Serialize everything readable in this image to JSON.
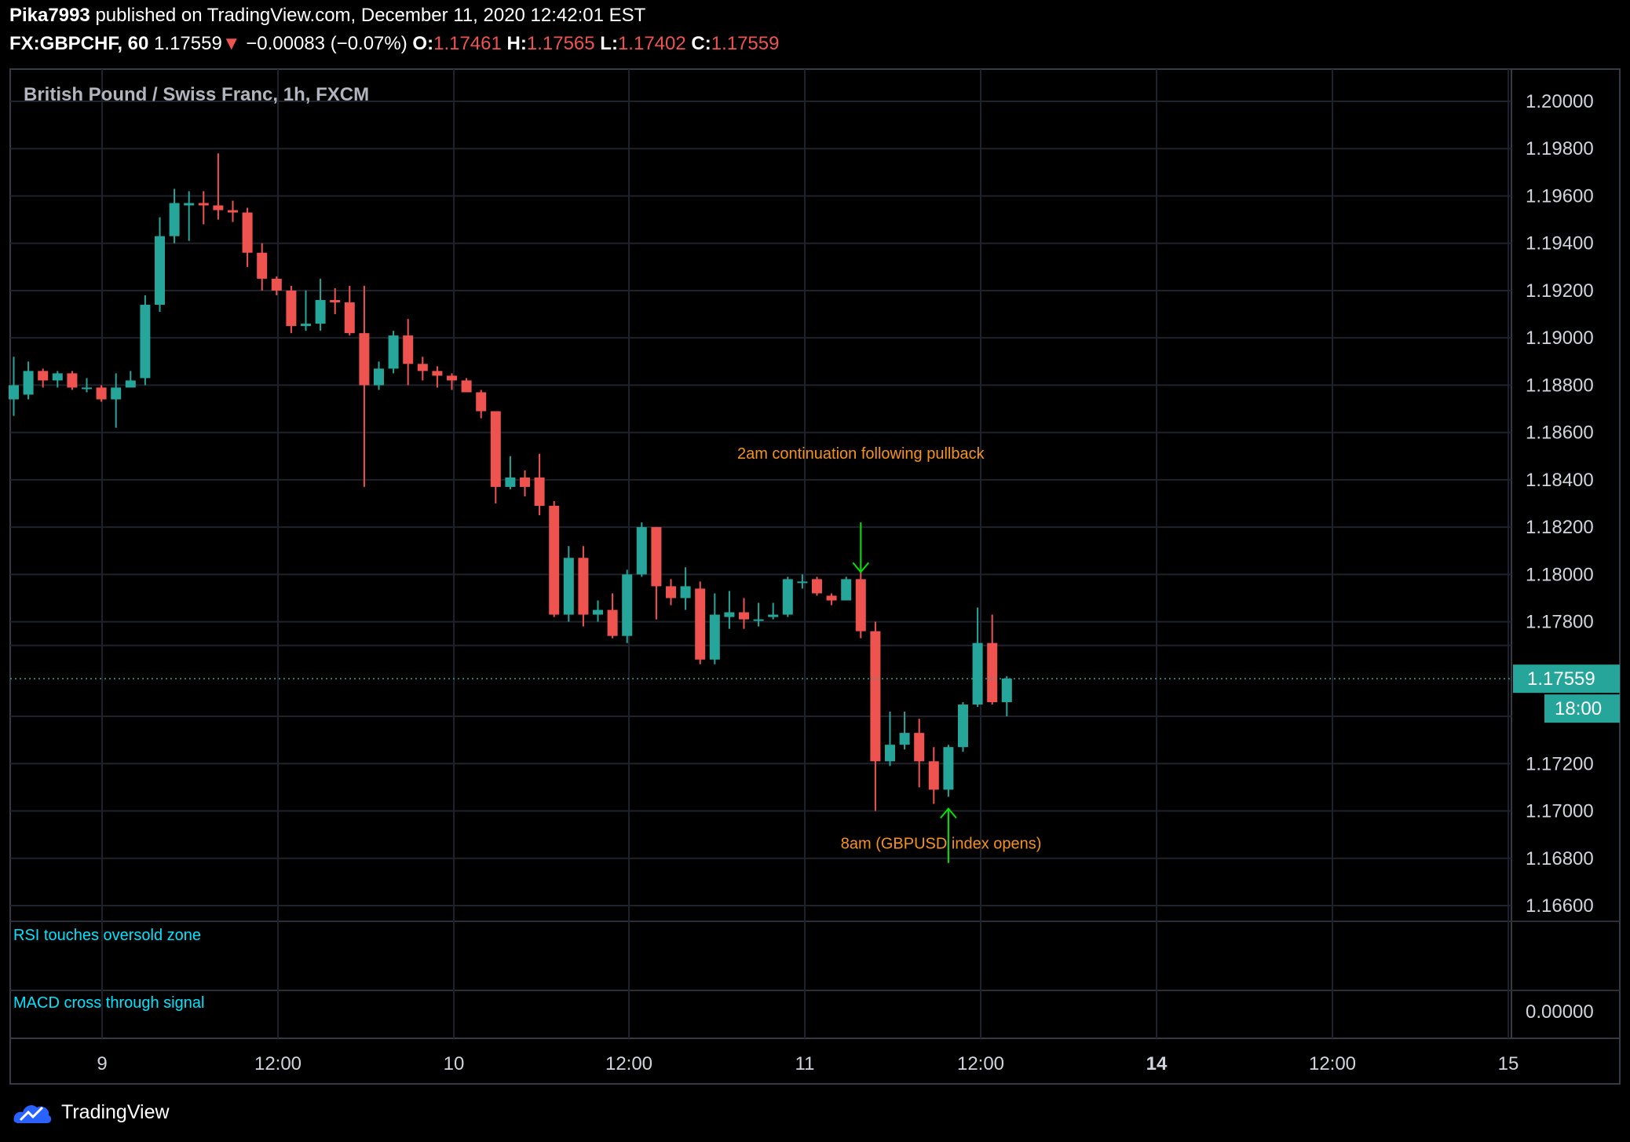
{
  "header": {
    "user": "Pika7993",
    "published": "published on TradingView.com, December 11, 2020 12:42:01 EST",
    "symbol": "FX:GBPCHF, 60",
    "last": "1.17559",
    "change_arrow": "▼",
    "change": "−0.00083 (−0.07%)",
    "o_label": "O:",
    "o": "1.17461",
    "h_label": "H:",
    "h": "1.17565",
    "l_label": "L:",
    "l": "1.17402",
    "c_label": "C:",
    "c": "1.17559"
  },
  "chart_title": "British Pound / Swiss Franc, 1h, FXCM",
  "footer": {
    "brand": "TradingView"
  },
  "colors": {
    "up": "#26a69a",
    "down": "#ef5350",
    "grid": "#1e222d",
    "annotation": "#f7931a",
    "signal": "#00e5ff",
    "arrow": "#00e600"
  },
  "chart_data": {
    "type": "candlestick",
    "title": "British Pound / Swiss Franc, 1h, FXCM",
    "ylim": [
      1.1652,
      1.2013
    ],
    "y_ticks": [
      "1.20000",
      "1.19800",
      "1.19600",
      "1.19400",
      "1.19200",
      "1.19000",
      "1.18800",
      "1.18600",
      "1.18400",
      "1.18200",
      "1.18000",
      "1.17800",
      "1.17200",
      "1.17000",
      "1.16800",
      "1.16600"
    ],
    "x_ticks": [
      "9",
      "12:00",
      "10",
      "12:00",
      "11",
      "12:00",
      "14",
      "12:00",
      "15"
    ],
    "price_label": "1.17559",
    "countdown_label": "18:00",
    "candles": [
      [
        1.1874,
        1.188,
        1.1867,
        1.1892
      ],
      [
        1.1876,
        1.1886,
        1.1874,
        1.189
      ],
      [
        1.1886,
        1.1882,
        1.1879,
        1.1887
      ],
      [
        1.1882,
        1.1885,
        1.1879,
        1.1886
      ],
      [
        1.1885,
        1.1879,
        1.1878,
        1.1886
      ],
      [
        1.1879,
        1.1879,
        1.1877,
        1.1883
      ],
      [
        1.1879,
        1.1874,
        1.1873,
        1.188
      ],
      [
        1.1874,
        1.1879,
        1.1862,
        1.1885
      ],
      [
        1.1879,
        1.1882,
        1.188,
        1.1886
      ],
      [
        1.1883,
        1.1914,
        1.188,
        1.1918
      ],
      [
        1.1914,
        1.1943,
        1.1911,
        1.1951
      ],
      [
        1.1943,
        1.1957,
        1.194,
        1.1963
      ],
      [
        1.1956,
        1.1957,
        1.1941,
        1.1962
      ],
      [
        1.1957,
        1.1956,
        1.1948,
        1.1962
      ],
      [
        1.1956,
        1.1954,
        1.195,
        1.1978
      ],
      [
        1.1954,
        1.1953,
        1.1949,
        1.1958
      ],
      [
        1.1953,
        1.1936,
        1.193,
        1.1955
      ],
      [
        1.1936,
        1.1925,
        1.192,
        1.194
      ],
      [
        1.1925,
        1.192,
        1.1918,
        1.1926
      ],
      [
        1.192,
        1.1905,
        1.1902,
        1.1922
      ],
      [
        1.1905,
        1.1906,
        1.1903,
        1.192
      ],
      [
        1.1906,
        1.1916,
        1.1903,
        1.1925
      ],
      [
        1.1916,
        1.1915,
        1.191,
        1.1921
      ],
      [
        1.1915,
        1.1902,
        1.1901,
        1.1922
      ],
      [
        1.1902,
        1.188,
        1.1837,
        1.1922
      ],
      [
        1.188,
        1.1887,
        1.1878,
        1.189
      ],
      [
        1.1887,
        1.1901,
        1.1885,
        1.1903
      ],
      [
        1.1901,
        1.1889,
        1.188,
        1.1908
      ],
      [
        1.1889,
        1.1886,
        1.1882,
        1.1892
      ],
      [
        1.1886,
        1.1884,
        1.1879,
        1.1888
      ],
      [
        1.1884,
        1.1882,
        1.1878,
        1.1885
      ],
      [
        1.1882,
        1.1877,
        1.1877,
        1.1883
      ],
      [
        1.1877,
        1.1869,
        1.1866,
        1.1878
      ],
      [
        1.1869,
        1.1837,
        1.183,
        1.1869
      ],
      [
        1.1837,
        1.1841,
        1.1836,
        1.185
      ],
      [
        1.1841,
        1.1837,
        1.1833,
        1.1844
      ],
      [
        1.1841,
        1.1829,
        1.1825,
        1.1851
      ],
      [
        1.1829,
        1.1783,
        1.1782,
        1.1831
      ],
      [
        1.1783,
        1.1807,
        1.178,
        1.1812
      ],
      [
        1.1807,
        1.1783,
        1.1778,
        1.1812
      ],
      [
        1.1783,
        1.1785,
        1.178,
        1.1789
      ],
      [
        1.1785,
        1.1774,
        1.1773,
        1.1792
      ],
      [
        1.1774,
        1.18,
        1.1771,
        1.1802
      ],
      [
        1.18,
        1.182,
        1.1799,
        1.1822
      ],
      [
        1.182,
        1.1795,
        1.1781,
        1.182
      ],
      [
        1.1795,
        1.179,
        1.1787,
        1.1798
      ],
      [
        1.179,
        1.1795,
        1.1785,
        1.1803
      ],
      [
        1.1794,
        1.1764,
        1.1762,
        1.1797
      ],
      [
        1.1764,
        1.1783,
        1.1762,
        1.1792
      ],
      [
        1.1782,
        1.1784,
        1.1777,
        1.1793
      ],
      [
        1.1784,
        1.1781,
        1.1777,
        1.179
      ],
      [
        1.1781,
        1.1781,
        1.1778,
        1.1788
      ],
      [
        1.1782,
        1.1783,
        1.1781,
        1.1788
      ],
      [
        1.1783,
        1.1798,
        1.1782,
        1.1799
      ],
      [
        1.1797,
        1.1797,
        1.1794,
        1.18
      ],
      [
        1.1798,
        1.1792,
        1.1791,
        1.1799
      ],
      [
        1.1791,
        1.1789,
        1.1787,
        1.1792
      ],
      [
        1.1789,
        1.1798,
        1.1789,
        1.1799
      ],
      [
        1.1798,
        1.1776,
        1.1773,
        1.1801
      ],
      [
        1.1776,
        1.1721,
        1.17,
        1.178
      ],
      [
        1.1721,
        1.1728,
        1.1719,
        1.1742
      ],
      [
        1.1728,
        1.1733,
        1.1726,
        1.1742
      ],
      [
        1.1733,
        1.1721,
        1.171,
        1.1739
      ],
      [
        1.1721,
        1.1709,
        1.1703,
        1.1727
      ],
      [
        1.1709,
        1.1727,
        1.1706,
        1.1728
      ],
      [
        1.1727,
        1.1745,
        1.1725,
        1.1746
      ],
      [
        1.1745,
        1.1771,
        1.1744,
        1.1786
      ],
      [
        1.1771,
        1.1746,
        1.1745,
        1.1783
      ],
      [
        1.1746,
        1.1756,
        1.174,
        1.1757
      ]
    ],
    "annotations": [
      {
        "text": "2am continuation following pullback",
        "x": 58,
        "y": 1.1849
      },
      {
        "text": "8am (GBPUSD index opens)",
        "x": 63.5,
        "y": 1.1684
      }
    ],
    "arrows": [
      {
        "direction": "down",
        "x": 58,
        "y_from": 1.1822,
        "y_to": 1.1801
      },
      {
        "direction": "up",
        "x": 64,
        "y_from": 1.1678,
        "y_to": 1.1701
      }
    ],
    "sub_panes": [
      {
        "label": "RSI touches oversold zone"
      },
      {
        "label": "MACD cross through signal",
        "tick": "0.00000"
      }
    ]
  }
}
